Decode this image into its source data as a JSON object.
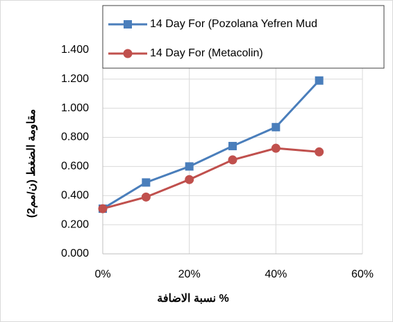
{
  "chart_data": {
    "type": "line",
    "y_label": "مقاومة الضغط (ن/مم2)",
    "x_label": "نسبة الاضافة %",
    "x": [
      0,
      0.1,
      0.2,
      0.3,
      0.4,
      0.5
    ],
    "series": [
      {
        "name": "14 Day For (Pozolana Yefren Mud",
        "color": "#4a7ebb",
        "marker": "square",
        "values": [
          0.31,
          0.49,
          0.6,
          0.74,
          0.87,
          1.19
        ]
      },
      {
        "name": "14 Day For (Metacolin)",
        "color": "#c0504d",
        "marker": "circle",
        "values": [
          0.31,
          0.39,
          0.51,
          0.645,
          0.725,
          0.7
        ]
      }
    ],
    "xlim": [
      0,
      0.6
    ],
    "xticks": [
      {
        "value": 0,
        "label": "0%"
      },
      {
        "value": 0.2,
        "label": "20%"
      },
      {
        "value": 0.4,
        "label": "40%"
      },
      {
        "value": 0.6,
        "label": "60%"
      }
    ],
    "ylim": [
      0,
      1.7
    ],
    "yticks": [
      {
        "value": 0,
        "label": "0.000"
      },
      {
        "value": 0.2,
        "label": "0.200"
      },
      {
        "value": 0.4,
        "label": "0.400"
      },
      {
        "value": 0.6,
        "label": "0.600"
      },
      {
        "value": 0.8,
        "label": "0.800"
      },
      {
        "value": 1.0,
        "label": "1.000"
      },
      {
        "value": 1.2,
        "label": "1.200"
      },
      {
        "value": 1.4,
        "label": "1.400"
      }
    ],
    "grid": true,
    "legend": "top"
  }
}
